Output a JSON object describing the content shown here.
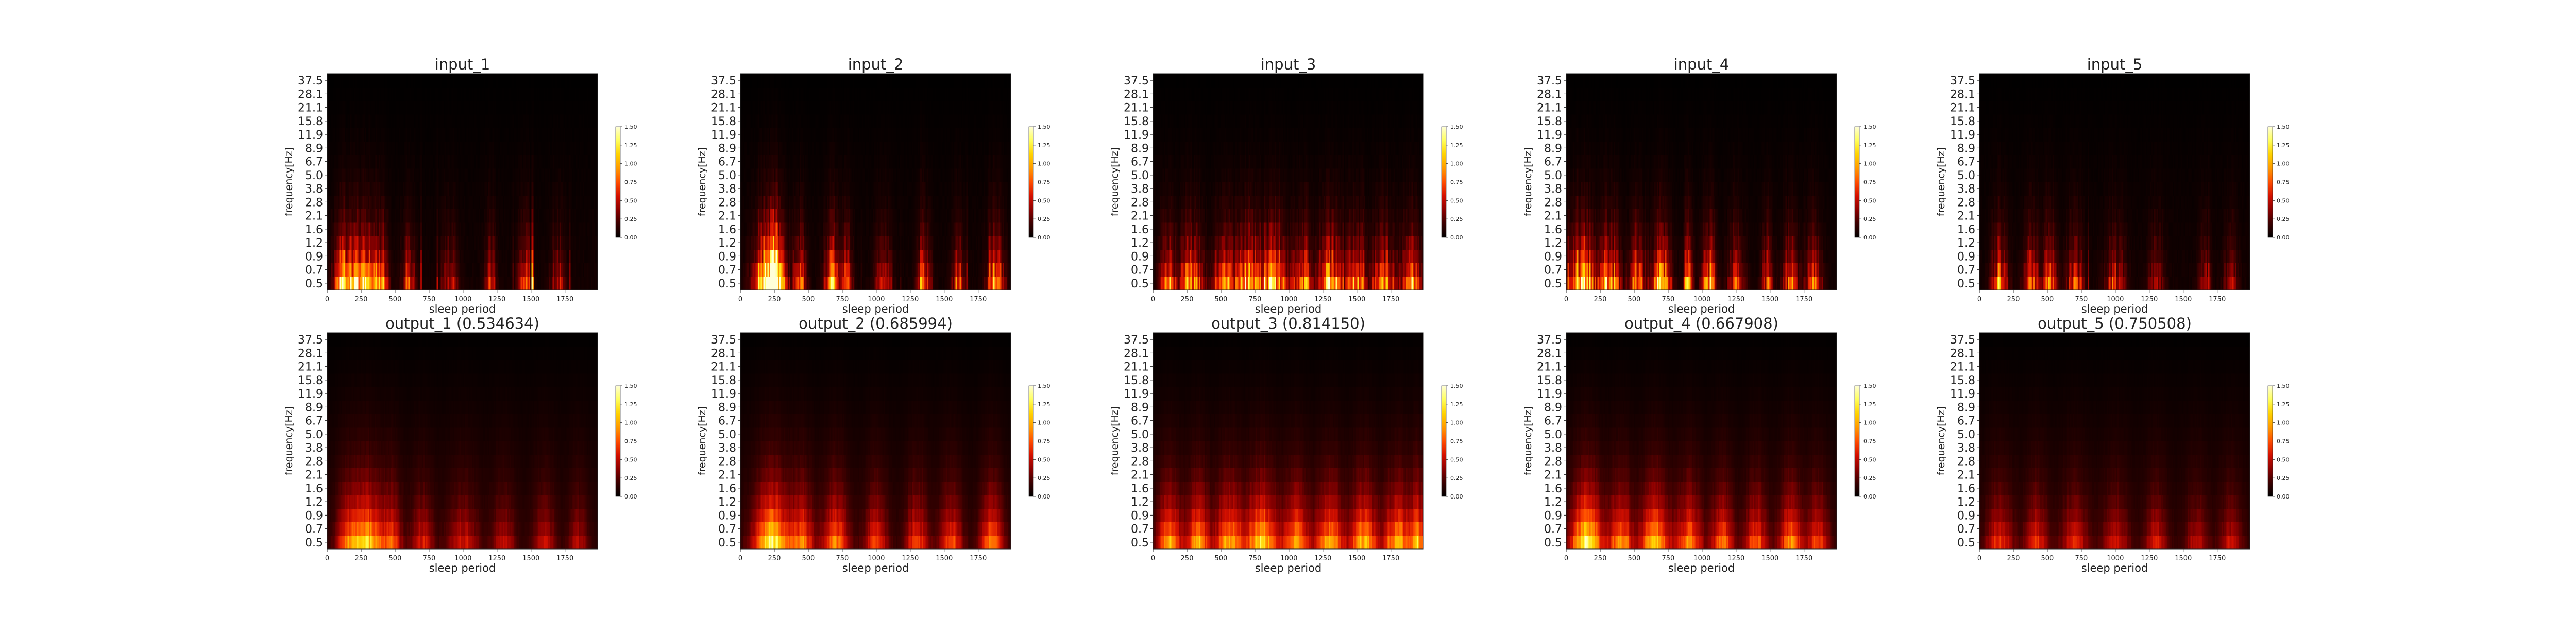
{
  "figure": {
    "xlabel": "sleep period",
    "ylabel": "frequency[Hz]"
  },
  "colormap": [
    "#000000",
    "#3a0000",
    "#8b0000",
    "#d41000",
    "#ff4e00",
    "#ff9a00",
    "#ffd200",
    "#ffff5a",
    "#ffffd8"
  ],
  "chart_data": [
    {
      "type": "heatmap",
      "title": "input_1",
      "row": 0,
      "col": 0,
      "seed": 11,
      "profile": "input",
      "bursts": [
        [
          110,
          40,
          0.8
        ],
        [
          250,
          90,
          1.25
        ],
        [
          400,
          30,
          0.7
        ],
        [
          600,
          35,
          0.55
        ],
        [
          900,
          40,
          0.5
        ],
        [
          1200,
          30,
          0.45
        ],
        [
          1450,
          30,
          0.7
        ],
        [
          1510,
          5,
          1.5
        ],
        [
          1700,
          35,
          0.45
        ]
      ]
    },
    {
      "type": "heatmap",
      "title": "input_2",
      "row": 0,
      "col": 1,
      "seed": 23,
      "profile": "input",
      "bursts": [
        [
          200,
          70,
          1.4
        ],
        [
          260,
          40,
          1.2
        ],
        [
          430,
          35,
          0.8
        ],
        [
          680,
          40,
          0.9
        ],
        [
          780,
          30,
          0.6
        ],
        [
          1050,
          40,
          0.7
        ],
        [
          1350,
          35,
          0.65
        ],
        [
          1600,
          30,
          0.6
        ],
        [
          1880,
          40,
          1.0
        ]
      ]
    },
    {
      "type": "heatmap",
      "title": "input_3",
      "row": 0,
      "col": 2,
      "seed": 37,
      "profile": "input",
      "bursts": [
        [
          100,
          40,
          0.8
        ],
        [
          280,
          60,
          0.9
        ],
        [
          520,
          50,
          0.85
        ],
        [
          700,
          60,
          1.0
        ],
        [
          880,
          70,
          1.15
        ],
        [
          1100,
          50,
          0.8
        ],
        [
          1300,
          60,
          0.95
        ],
        [
          1500,
          50,
          0.9
        ],
        [
          1700,
          60,
          0.85
        ],
        [
          1900,
          50,
          0.85
        ]
      ]
    },
    {
      "type": "heatmap",
      "title": "input_4",
      "row": 0,
      "col": 3,
      "seed": 41,
      "profile": "input",
      "bursts": [
        [
          120,
          60,
          1.3
        ],
        [
          320,
          50,
          1.0
        ],
        [
          520,
          40,
          0.85
        ],
        [
          700,
          50,
          0.95
        ],
        [
          900,
          20,
          1.2
        ],
        [
          1050,
          35,
          0.85
        ],
        [
          1250,
          40,
          0.7
        ],
        [
          1480,
          30,
          0.6
        ],
        [
          1650,
          35,
          0.8
        ],
        [
          1820,
          40,
          0.7
        ]
      ]
    },
    {
      "type": "heatmap",
      "title": "input_5",
      "row": 0,
      "col": 4,
      "seed": 53,
      "profile": "input",
      "bursts": [
        [
          150,
          40,
          0.75
        ],
        [
          380,
          40,
          0.7
        ],
        [
          520,
          35,
          0.8
        ],
        [
          700,
          40,
          0.7
        ],
        [
          1000,
          50,
          0.55
        ],
        [
          1300,
          40,
          0.5
        ],
        [
          1650,
          30,
          0.45
        ],
        [
          1850,
          35,
          0.45
        ]
      ]
    },
    {
      "type": "heatmap",
      "title": "output_1 (0.534634)",
      "row": 1,
      "col": 0,
      "seed": 61,
      "profile": "output",
      "bursts": [
        [
          150,
          60,
          0.6
        ],
        [
          300,
          80,
          1.0
        ],
        [
          480,
          50,
          0.6
        ],
        [
          700,
          60,
          0.45
        ],
        [
          1000,
          80,
          0.45
        ],
        [
          1300,
          60,
          0.4
        ],
        [
          1600,
          60,
          0.4
        ],
        [
          1850,
          50,
          0.35
        ]
      ]
    },
    {
      "type": "heatmap",
      "title": "output_2 (0.685994)",
      "row": 1,
      "col": 1,
      "seed": 73,
      "profile": "output",
      "bursts": [
        [
          230,
          90,
          1.2
        ],
        [
          450,
          60,
          0.75
        ],
        [
          700,
          70,
          0.75
        ],
        [
          1000,
          60,
          0.6
        ],
        [
          1300,
          60,
          0.6
        ],
        [
          1550,
          60,
          0.6
        ],
        [
          1850,
          60,
          0.8
        ]
      ]
    },
    {
      "type": "heatmap",
      "title": "output_3 (0.814150)",
      "row": 1,
      "col": 2,
      "seed": 83,
      "profile": "output",
      "bursts": [
        [
          120,
          60,
          0.9
        ],
        [
          330,
          60,
          0.85
        ],
        [
          560,
          70,
          0.9
        ],
        [
          800,
          80,
          1.05
        ],
        [
          1050,
          70,
          0.85
        ],
        [
          1300,
          70,
          0.9
        ],
        [
          1550,
          70,
          0.9
        ],
        [
          1800,
          70,
          0.9
        ],
        [
          1950,
          40,
          0.85
        ]
      ]
    },
    {
      "type": "heatmap",
      "title": "output_4 (0.667908)",
      "row": 1,
      "col": 3,
      "seed": 97,
      "profile": "output",
      "bursts": [
        [
          150,
          80,
          1.2
        ],
        [
          400,
          60,
          0.85
        ],
        [
          650,
          70,
          1.0
        ],
        [
          900,
          70,
          0.75
        ],
        [
          1150,
          60,
          0.7
        ],
        [
          1400,
          60,
          0.65
        ],
        [
          1650,
          60,
          0.75
        ],
        [
          1850,
          60,
          0.6
        ]
      ]
    },
    {
      "type": "heatmap",
      "title": "output_5 (0.750508)",
      "row": 1,
      "col": 4,
      "seed": 101,
      "profile": "output",
      "bursts": [
        [
          150,
          70,
          0.55
        ],
        [
          420,
          60,
          0.55
        ],
        [
          700,
          70,
          0.5
        ],
        [
          1000,
          70,
          0.45
        ],
        [
          1300,
          60,
          0.45
        ],
        [
          1600,
          60,
          0.4
        ],
        [
          1850,
          60,
          0.4
        ]
      ]
    }
  ],
  "axes": {
    "y_ticks": [
      "37.5",
      "28.1",
      "21.1",
      "15.8",
      "11.9",
      "8.9",
      "6.7",
      "5.0",
      "3.8",
      "2.8",
      "2.1",
      "1.6",
      "1.2",
      "0.9",
      "0.7",
      "0.5"
    ],
    "x_ticks": [
      0,
      250,
      500,
      750,
      1000,
      1250,
      1500,
      1750
    ],
    "x_range": [
      0,
      1990
    ],
    "n_freq_bins": 16
  },
  "colorbar": {
    "range": [
      0,
      1.5
    ],
    "ticks": [
      "0.00",
      "0.25",
      "0.50",
      "0.75",
      "1.00",
      "1.25",
      "1.50"
    ],
    "tick_values": [
      0,
      0.25,
      0.5,
      0.75,
      1.0,
      1.25,
      1.5
    ]
  }
}
